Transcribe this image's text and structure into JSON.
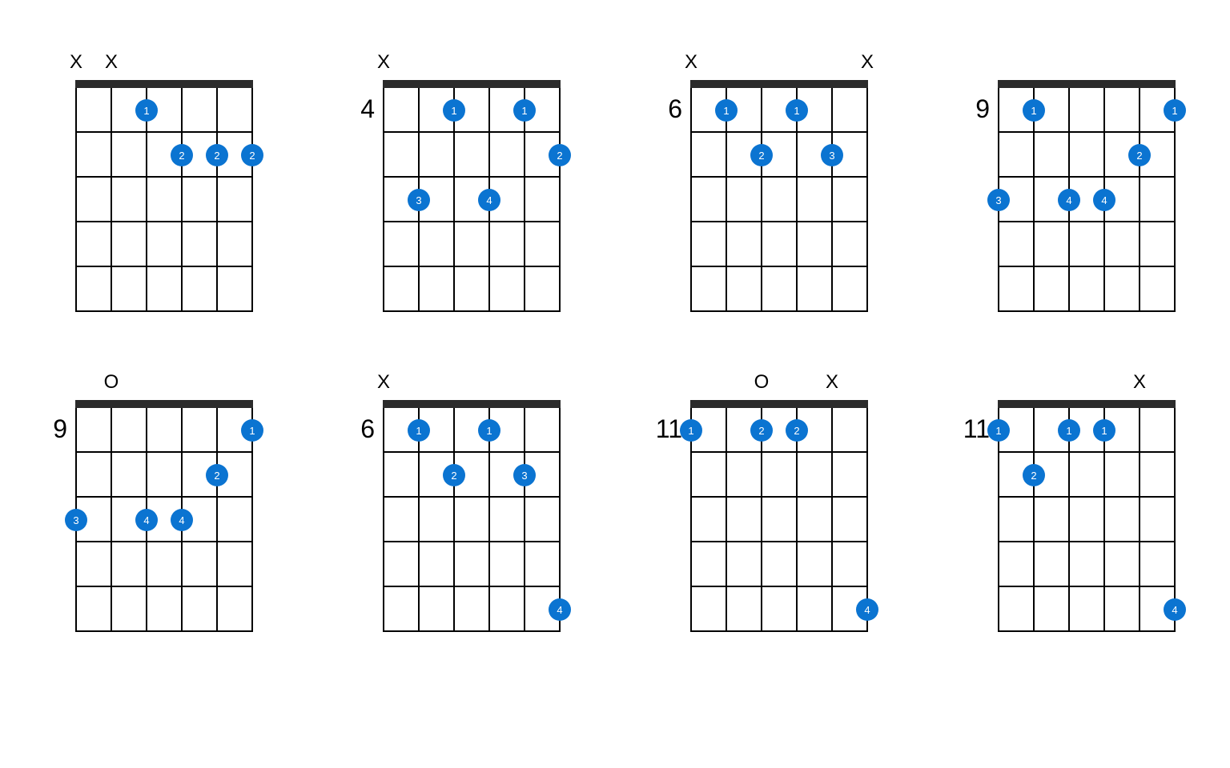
{
  "layout": {
    "strings": 6,
    "frets": 5,
    "string_spacing": 44,
    "fret_height": 56,
    "dot_radius": 14,
    "nut_color": "#2b2b2b",
    "line_color": "#000000",
    "dot_color": "#0b74d1",
    "dot_text_color": "#ffffff",
    "marker_font_size": 24,
    "fret_label_font_size": 32,
    "background": "#ffffff"
  },
  "chords": [
    {
      "start_fret": null,
      "markers": [
        "X",
        "X",
        "",
        "",
        "",
        ""
      ],
      "dots": [
        {
          "string": 3,
          "fret": 1,
          "finger": "1"
        },
        {
          "string": 4,
          "fret": 2,
          "finger": "2"
        },
        {
          "string": 5,
          "fret": 2,
          "finger": "2"
        },
        {
          "string": 6,
          "fret": 2,
          "finger": "2"
        }
      ]
    },
    {
      "start_fret": "4",
      "markers": [
        "X",
        "",
        "",
        "",
        "",
        ""
      ],
      "dots": [
        {
          "string": 3,
          "fret": 1,
          "finger": "1"
        },
        {
          "string": 5,
          "fret": 1,
          "finger": "1"
        },
        {
          "string": 6,
          "fret": 2,
          "finger": "2"
        },
        {
          "string": 2,
          "fret": 3,
          "finger": "3"
        },
        {
          "string": 4,
          "fret": 3,
          "finger": "4"
        }
      ]
    },
    {
      "start_fret": "6",
      "markers": [
        "X",
        "",
        "",
        "",
        "",
        "X"
      ],
      "dots": [
        {
          "string": 2,
          "fret": 1,
          "finger": "1"
        },
        {
          "string": 4,
          "fret": 1,
          "finger": "1"
        },
        {
          "string": 3,
          "fret": 2,
          "finger": "2"
        },
        {
          "string": 5,
          "fret": 2,
          "finger": "3"
        }
      ]
    },
    {
      "start_fret": "9",
      "markers": [
        "",
        "",
        "",
        "",
        "",
        ""
      ],
      "dots": [
        {
          "string": 2,
          "fret": 1,
          "finger": "1"
        },
        {
          "string": 6,
          "fret": 1,
          "finger": "1"
        },
        {
          "string": 5,
          "fret": 2,
          "finger": "2"
        },
        {
          "string": 1,
          "fret": 3,
          "finger": "3"
        },
        {
          "string": 3,
          "fret": 3,
          "finger": "4"
        },
        {
          "string": 4,
          "fret": 3,
          "finger": "4"
        }
      ]
    },
    {
      "start_fret": "9",
      "markers": [
        "",
        "O",
        "",
        "",
        "",
        ""
      ],
      "dots": [
        {
          "string": 6,
          "fret": 1,
          "finger": "1"
        },
        {
          "string": 5,
          "fret": 2,
          "finger": "2"
        },
        {
          "string": 1,
          "fret": 3,
          "finger": "3"
        },
        {
          "string": 3,
          "fret": 3,
          "finger": "4"
        },
        {
          "string": 4,
          "fret": 3,
          "finger": "4"
        }
      ]
    },
    {
      "start_fret": "6",
      "markers": [
        "X",
        "",
        "",
        "",
        "",
        ""
      ],
      "dots": [
        {
          "string": 2,
          "fret": 1,
          "finger": "1"
        },
        {
          "string": 4,
          "fret": 1,
          "finger": "1"
        },
        {
          "string": 3,
          "fret": 2,
          "finger": "2"
        },
        {
          "string": 5,
          "fret": 2,
          "finger": "3"
        },
        {
          "string": 6,
          "fret": 5,
          "finger": "4"
        }
      ]
    },
    {
      "start_fret": "11",
      "markers": [
        "",
        "",
        "O",
        "",
        "X",
        ""
      ],
      "dots": [
        {
          "string": 1,
          "fret": 1,
          "finger": "1"
        },
        {
          "string": 3,
          "fret": 1,
          "finger": "2"
        },
        {
          "string": 4,
          "fret": 1,
          "finger": "2"
        },
        {
          "string": 6,
          "fret": 5,
          "finger": "4"
        }
      ]
    },
    {
      "start_fret": "11",
      "markers": [
        "",
        "",
        "",
        "",
        "X",
        ""
      ],
      "dots": [
        {
          "string": 1,
          "fret": 1,
          "finger": "1"
        },
        {
          "string": 3,
          "fret": 1,
          "finger": "1"
        },
        {
          "string": 4,
          "fret": 1,
          "finger": "1"
        },
        {
          "string": 2,
          "fret": 2,
          "finger": "2"
        },
        {
          "string": 6,
          "fret": 5,
          "finger": "4"
        }
      ]
    }
  ]
}
